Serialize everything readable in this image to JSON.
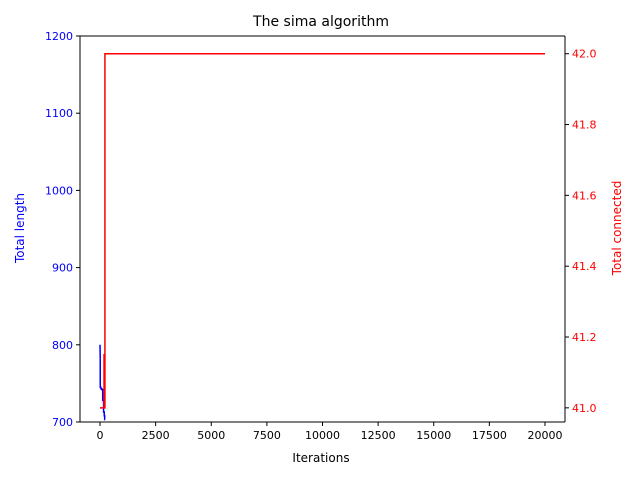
{
  "chart_data": {
    "type": "line",
    "title": "The sima algorithm",
    "xlabel": "Iterations",
    "x_ticks": [
      0,
      2500,
      5000,
      7500,
      10000,
      12500,
      15000,
      17500,
      20000
    ],
    "x_tick_labels": [
      "0",
      "2500",
      "5000",
      "7500",
      "10000",
      "12500",
      "15000",
      "17500",
      "20000"
    ],
    "xlim": [
      -900,
      20900
    ],
    "left_axis": {
      "label": "Total length",
      "color": "#0000ff",
      "ylim": [
        700,
        1200
      ],
      "ticks": [
        700,
        800,
        900,
        1000,
        1100,
        1200
      ],
      "tick_labels": [
        "700",
        "800",
        "900",
        "1000",
        "1100",
        "1200"
      ]
    },
    "right_axis": {
      "label": "Total connected",
      "color": "#ff0000",
      "ylim": [
        40.96,
        42.05
      ],
      "ticks": [
        41.0,
        41.2,
        41.4,
        41.6,
        41.8,
        42.0
      ],
      "tick_labels": [
        "41.0",
        "41.2",
        "41.4",
        "41.6",
        "41.8",
        "42.0"
      ]
    },
    "series": [
      {
        "axis": "left",
        "color": "#0000ff",
        "x": [
          0,
          5,
          10,
          10,
          30,
          40,
          40,
          60,
          80,
          80,
          100,
          120,
          120,
          140,
          160,
          160,
          180,
          190,
          190,
          200,
          210,
          210,
          220
        ],
        "y": [
          800,
          790,
          780,
          745,
          745,
          745,
          743,
          743,
          743,
          742,
          742,
          742,
          728,
          728,
          728,
          713,
          713,
          713,
          708,
          708,
          708,
          703,
          703
        ]
      },
      {
        "axis": "right",
        "color": "#ff0000",
        "x": [
          0,
          180,
          180,
          200,
          200,
          220,
          220,
          20000
        ],
        "y": [
          41.0,
          41.0,
          41.15,
          41.15,
          41.0,
          41.0,
          42.0,
          42.0
        ]
      }
    ],
    "grid": false
  }
}
